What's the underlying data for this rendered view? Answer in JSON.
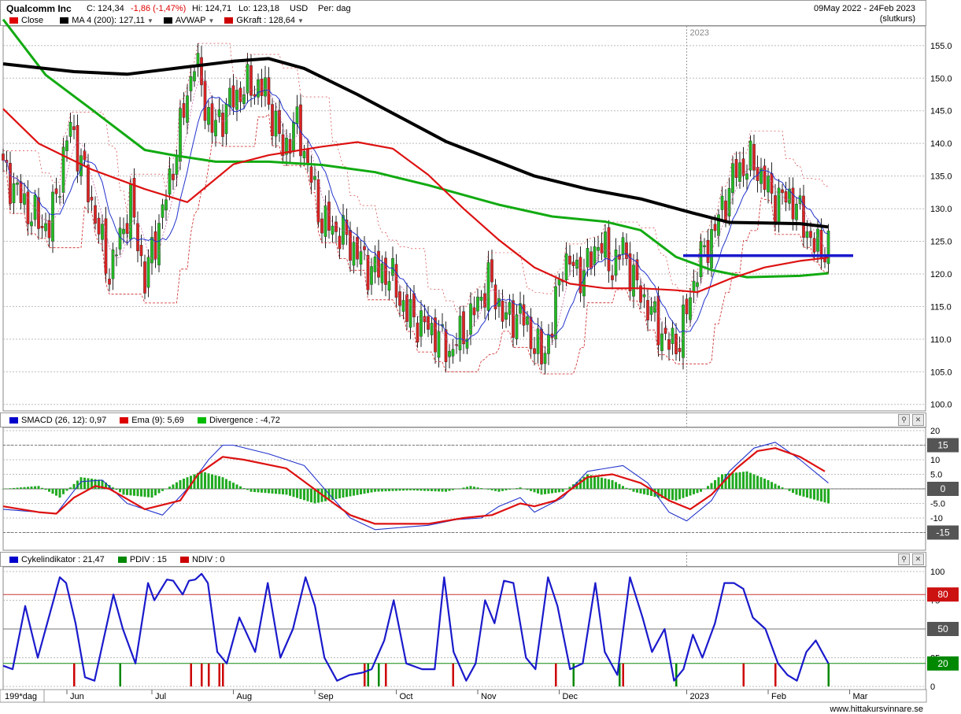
{
  "header": {
    "title": "Qualcomm Inc",
    "close_label": "C: 124,34",
    "change": "-1,86 (-1,47%)",
    "high": "Hi: 124,71",
    "low": "Lo: 123,18",
    "currency": "USD",
    "period": "Per: dag",
    "date_range": "09May 2022 - 24Feb 2023",
    "note": "(slutkurs)"
  },
  "legend_main": [
    {
      "label": "Close",
      "color": "#e00000"
    },
    {
      "label": "MA 4 (200): 127,11",
      "color": "#000000"
    },
    {
      "label": "AVWAP",
      "color": "#000000"
    },
    {
      "label": "GKraft : 128,64",
      "color": "#cc0000"
    }
  ],
  "legend_macd": [
    {
      "label": "SMACD (26, 12): 0,97",
      "color": "#0000cc"
    },
    {
      "label": "Ema (9): 5,69",
      "color": "#dd0000"
    },
    {
      "label": "Divergence : -4,72",
      "color": "#00bb00"
    }
  ],
  "legend_cycle": [
    {
      "label": "Cykelindikator : 21,47",
      "color": "#0000cc"
    },
    {
      "label": "PDIV : 15",
      "color": "#008800"
    },
    {
      "label": "NDIV : 0",
      "color": "#cc0000"
    }
  ],
  "x_axis": {
    "period_label": "199*dag",
    "months": [
      "Jun",
      "Jul",
      "Aug",
      "Sep",
      "Oct",
      "Nov",
      "Dec",
      "2023",
      "Feb",
      "Mar"
    ],
    "year_marker": "2023"
  },
  "footer": {
    "site": "www.hittakursvinnare.se"
  },
  "colors": {
    "up": "#22bb22",
    "down": "#dd2222",
    "ma": "#000000",
    "green_ma": "#11aa11",
    "red_ma": "#dd1111",
    "blue": "#1a1acc"
  },
  "chart_data": [
    {
      "type": "candlestick",
      "ylim": [
        99,
        158
      ],
      "y_ticks": [
        100,
        105,
        110,
        115,
        120,
        125,
        130,
        135,
        140,
        145,
        150,
        155
      ],
      "y_tick_labels": [
        "100.0",
        "105.0",
        "110.0",
        "115.0",
        "120.0",
        "125.0",
        "130.0",
        "135.0",
        "140.0",
        "145.0",
        "150.0",
        "155.0"
      ],
      "close_waypoints": [
        [
          0,
          136
        ],
        [
          8,
          129
        ],
        [
          13,
          127
        ],
        [
          19,
          143
        ],
        [
          24,
          133
        ],
        [
          30,
          120
        ],
        [
          36,
          131
        ],
        [
          40,
          119
        ],
        [
          47,
          134
        ],
        [
          54,
          153
        ],
        [
          59,
          142
        ],
        [
          65,
          147
        ],
        [
          70,
          149
        ],
        [
          74,
          148
        ],
        [
          79,
          139
        ],
        [
          83,
          143
        ],
        [
          90,
          128
        ],
        [
          96,
          126
        ],
        [
          103,
          121
        ],
        [
          109,
          120
        ],
        [
          114,
          114
        ],
        [
          122,
          111
        ],
        [
          126,
          108
        ],
        [
          131,
          112
        ],
        [
          137,
          119
        ],
        [
          142,
          113
        ],
        [
          146,
          114
        ],
        [
          152,
          107
        ],
        [
          155,
          112
        ],
        [
          158,
          122
        ],
        [
          164,
          120
        ],
        [
          168,
          125
        ],
        [
          172,
          121
        ],
        [
          175,
          124
        ],
        [
          178,
          119
        ],
        [
          181,
          116
        ],
        [
          188,
          109
        ],
        [
          191,
          110
        ],
        [
          196,
          121
        ],
        [
          201,
          127
        ],
        [
          207,
          136
        ],
        [
          212,
          137
        ],
        [
          218,
          131
        ],
        [
          222,
          132
        ],
        [
          226,
          128
        ],
        [
          229,
          124
        ],
        [
          233,
          124
        ]
      ],
      "ma200": [
        [
          0,
          152.2
        ],
        [
          20,
          151.0
        ],
        [
          35,
          150.6
        ],
        [
          50,
          151.6
        ],
        [
          65,
          152.6
        ],
        [
          75,
          153.0
        ],
        [
          85,
          151.5
        ],
        [
          100,
          147.5
        ],
        [
          125,
          140.3
        ],
        [
          150,
          135.0
        ],
        [
          165,
          133.0
        ],
        [
          180,
          131.5
        ],
        [
          195,
          129.3
        ],
        [
          205,
          127.9
        ],
        [
          215,
          127.8
        ],
        [
          225,
          127.7
        ],
        [
          233,
          127.2
        ]
      ],
      "green_ma": [
        [
          0,
          159
        ],
        [
          12,
          150.5
        ],
        [
          25,
          145.2
        ],
        [
          40,
          139.0
        ],
        [
          48,
          138.2
        ],
        [
          60,
          137.2
        ],
        [
          75,
          137.2
        ],
        [
          90,
          136.7
        ],
        [
          105,
          135.6
        ],
        [
          120,
          133.6
        ],
        [
          140,
          130.6
        ],
        [
          155,
          128.8
        ],
        [
          170,
          128.0
        ],
        [
          180,
          126.7
        ],
        [
          190,
          122.6
        ],
        [
          200,
          120.6
        ],
        [
          210,
          119.5
        ],
        [
          225,
          119.7
        ],
        [
          233,
          120.1
        ]
      ],
      "red_ma": [
        [
          0,
          145.3
        ],
        [
          10,
          140.0
        ],
        [
          25,
          136.0
        ],
        [
          40,
          133.0
        ],
        [
          52,
          131.0
        ],
        [
          65,
          136.8
        ],
        [
          75,
          138.2
        ],
        [
          90,
          139.5
        ],
        [
          100,
          140.2
        ],
        [
          110,
          139.2
        ],
        [
          120,
          135.2
        ],
        [
          130,
          130.0
        ],
        [
          140,
          125.2
        ],
        [
          150,
          121.0
        ],
        [
          160,
          118.5
        ],
        [
          170,
          117.8
        ],
        [
          180,
          117.8
        ],
        [
          190,
          117.5
        ],
        [
          196,
          117.2
        ],
        [
          205,
          119.2
        ],
        [
          215,
          121.0
        ],
        [
          225,
          122.0
        ],
        [
          233,
          122.5
        ]
      ],
      "hline": {
        "value": 122.8,
        "from": 192,
        "to": 240
      }
    },
    {
      "type": "macd",
      "ylim": [
        -20,
        20
      ],
      "y_ticks": [
        20,
        15,
        10,
        5,
        0,
        -5,
        -10,
        -15
      ],
      "y_tick_labels": [
        "20",
        "15",
        "10",
        "5.0",
        "0",
        "-5.0",
        "-10",
        "-15"
      ],
      "highlight_levels": [
        15,
        0,
        -15
      ],
      "smacd": [
        [
          0,
          -7
        ],
        [
          10,
          -8
        ],
        [
          15,
          -8.5
        ],
        [
          22,
          2.5
        ],
        [
          28,
          3
        ],
        [
          35,
          -5
        ],
        [
          45,
          -9
        ],
        [
          52,
          0
        ],
        [
          58,
          10
        ],
        [
          62,
          15
        ],
        [
          65,
          15
        ],
        [
          75,
          12
        ],
        [
          85,
          8
        ],
        [
          90,
          1
        ],
        [
          98,
          -10
        ],
        [
          105,
          -14
        ],
        [
          115,
          -13
        ],
        [
          120,
          -12.5
        ],
        [
          128,
          -10.5
        ],
        [
          135,
          -10
        ],
        [
          140,
          -6
        ],
        [
          146,
          -3
        ],
        [
          150,
          -8
        ],
        [
          158,
          -3
        ],
        [
          165,
          6
        ],
        [
          175,
          8
        ],
        [
          182,
          2
        ],
        [
          188,
          -8
        ],
        [
          193,
          -11
        ],
        [
          200,
          -4
        ],
        [
          205,
          6
        ],
        [
          212,
          14
        ],
        [
          218,
          16
        ],
        [
          225,
          10
        ],
        [
          233,
          2
        ]
      ],
      "ema": [
        [
          0,
          -6
        ],
        [
          10,
          -8
        ],
        [
          15,
          -8.5
        ],
        [
          20,
          -3
        ],
        [
          26,
          1
        ],
        [
          30,
          0
        ],
        [
          40,
          -7
        ],
        [
          50,
          -4
        ],
        [
          55,
          5
        ],
        [
          62,
          11
        ],
        [
          68,
          10
        ],
        [
          80,
          7
        ],
        [
          90,
          -2
        ],
        [
          98,
          -9
        ],
        [
          105,
          -12
        ],
        [
          120,
          -12
        ],
        [
          130,
          -10
        ],
        [
          138,
          -9
        ],
        [
          146,
          -5
        ],
        [
          150,
          -6
        ],
        [
          156,
          -4
        ],
        [
          165,
          4
        ],
        [
          172,
          5
        ],
        [
          180,
          2
        ],
        [
          188,
          -4
        ],
        [
          194,
          -7
        ],
        [
          200,
          -2
        ],
        [
          207,
          7
        ],
        [
          213,
          13
        ],
        [
          218,
          14
        ],
        [
          225,
          11
        ],
        [
          232,
          6
        ]
      ],
      "divergence": [
        [
          0,
          0
        ],
        [
          10,
          1
        ],
        [
          16,
          -3
        ],
        [
          22,
          4
        ],
        [
          28,
          3
        ],
        [
          34,
          -2
        ],
        [
          42,
          -3
        ],
        [
          50,
          3
        ],
        [
          56,
          6
        ],
        [
          62,
          4
        ],
        [
          70,
          -1
        ],
        [
          80,
          -2
        ],
        [
          88,
          -5
        ],
        [
          96,
          -3
        ],
        [
          105,
          -1
        ],
        [
          115,
          -0.5
        ],
        [
          125,
          -1
        ],
        [
          132,
          1
        ],
        [
          140,
          -1
        ],
        [
          146,
          0.5
        ],
        [
          152,
          -2
        ],
        [
          158,
          -1
        ],
        [
          165,
          5
        ],
        [
          172,
          3
        ],
        [
          178,
          -1
        ],
        [
          185,
          -3
        ],
        [
          190,
          -4
        ],
        [
          197,
          -1
        ],
        [
          203,
          5
        ],
        [
          210,
          6
        ],
        [
          216,
          3
        ],
        [
          224,
          -2
        ],
        [
          233,
          -5
        ]
      ]
    },
    {
      "type": "oscillator",
      "ylim": [
        0,
        100
      ],
      "y_ticks": [
        100,
        75,
        50,
        25,
        0
      ],
      "y_tick_labels": [
        "100",
        "75",
        "50",
        "25",
        "0"
      ],
      "highlight_levels": [
        80,
        50,
        20
      ],
      "cycle": [
        [
          0,
          18
        ],
        [
          3,
          15
        ],
        [
          7,
          70
        ],
        [
          11,
          25
        ],
        [
          15,
          65
        ],
        [
          18,
          95
        ],
        [
          20,
          90
        ],
        [
          23,
          55
        ],
        [
          26,
          8
        ],
        [
          29,
          5
        ],
        [
          31,
          30
        ],
        [
          35,
          80
        ],
        [
          38,
          50
        ],
        [
          42,
          20
        ],
        [
          46,
          90
        ],
        [
          48,
          75
        ],
        [
          52,
          93
        ],
        [
          54,
          92
        ],
        [
          57,
          80
        ],
        [
          59,
          92
        ],
        [
          61,
          93
        ],
        [
          63,
          98
        ],
        [
          65,
          90
        ],
        [
          68,
          30
        ],
        [
          71,
          20
        ],
        [
          75,
          60
        ],
        [
          80,
          30
        ],
        [
          84,
          90
        ],
        [
          88,
          25
        ],
        [
          92,
          50
        ],
        [
          96,
          95
        ],
        [
          99,
          70
        ],
        [
          102,
          25
        ],
        [
          106,
          5
        ],
        [
          110,
          10
        ],
        [
          114,
          12
        ],
        [
          117,
          15
        ],
        [
          121,
          40
        ],
        [
          124,
          75
        ],
        [
          128,
          20
        ],
        [
          133,
          15
        ],
        [
          137,
          15
        ],
        [
          140,
          95
        ],
        [
          143,
          30
        ],
        [
          147,
          5
        ],
        [
          150,
          20
        ],
        [
          153,
          75
        ],
        [
          156,
          55
        ],
        [
          159,
          92
        ],
        [
          162,
          90
        ],
        [
          166,
          25
        ],
        [
          169,
          15
        ],
        [
          173,
          95
        ],
        [
          176,
          70
        ],
        [
          180,
          15
        ],
        [
          184,
          20
        ],
        [
          188,
          90
        ],
        [
          191,
          30
        ],
        [
          195,
          10
        ],
        [
          199,
          95
        ],
        [
          203,
          60
        ],
        [
          206,
          30
        ],
        [
          210,
          50
        ],
        [
          213,
          5
        ],
        [
          216,
          15
        ],
        [
          219,
          45
        ],
        [
          222,
          25
        ],
        [
          226,
          55
        ],
        [
          229,
          90
        ],
        [
          232,
          90
        ],
        [
          235,
          85
        ],
        [
          238,
          60
        ],
        [
          242,
          50
        ],
        [
          246,
          20
        ],
        [
          249,
          10
        ],
        [
          252,
          5
        ],
        [
          255,
          30
        ],
        [
          258,
          40
        ],
        [
          262,
          20
        ]
      ],
      "pdiv": [
        33,
        103,
        106,
        161,
        174,
        190,
        233
      ],
      "ndiv": [
        20,
        53,
        56,
        58,
        61,
        62,
        102,
        108,
        127,
        156,
        175,
        209,
        218
      ]
    }
  ]
}
